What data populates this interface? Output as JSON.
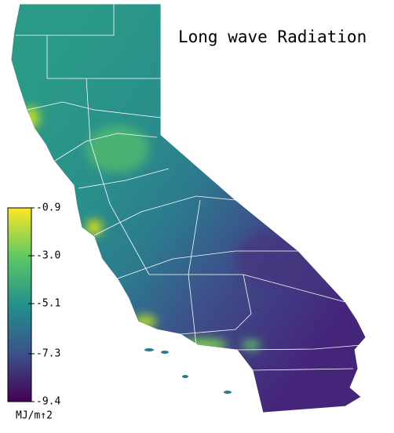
{
  "map": {
    "title": "Long wave Radiation",
    "colorbar": {
      "lim": [
        -9.4,
        -0.9
      ],
      "ticks": [
        -0.9,
        {
          "value": -3,
          "label": "-3.0"
        },
        -5.1,
        -7.3,
        -9.4
      ],
      "label": "MJ/m↑2"
    }
  }
}
